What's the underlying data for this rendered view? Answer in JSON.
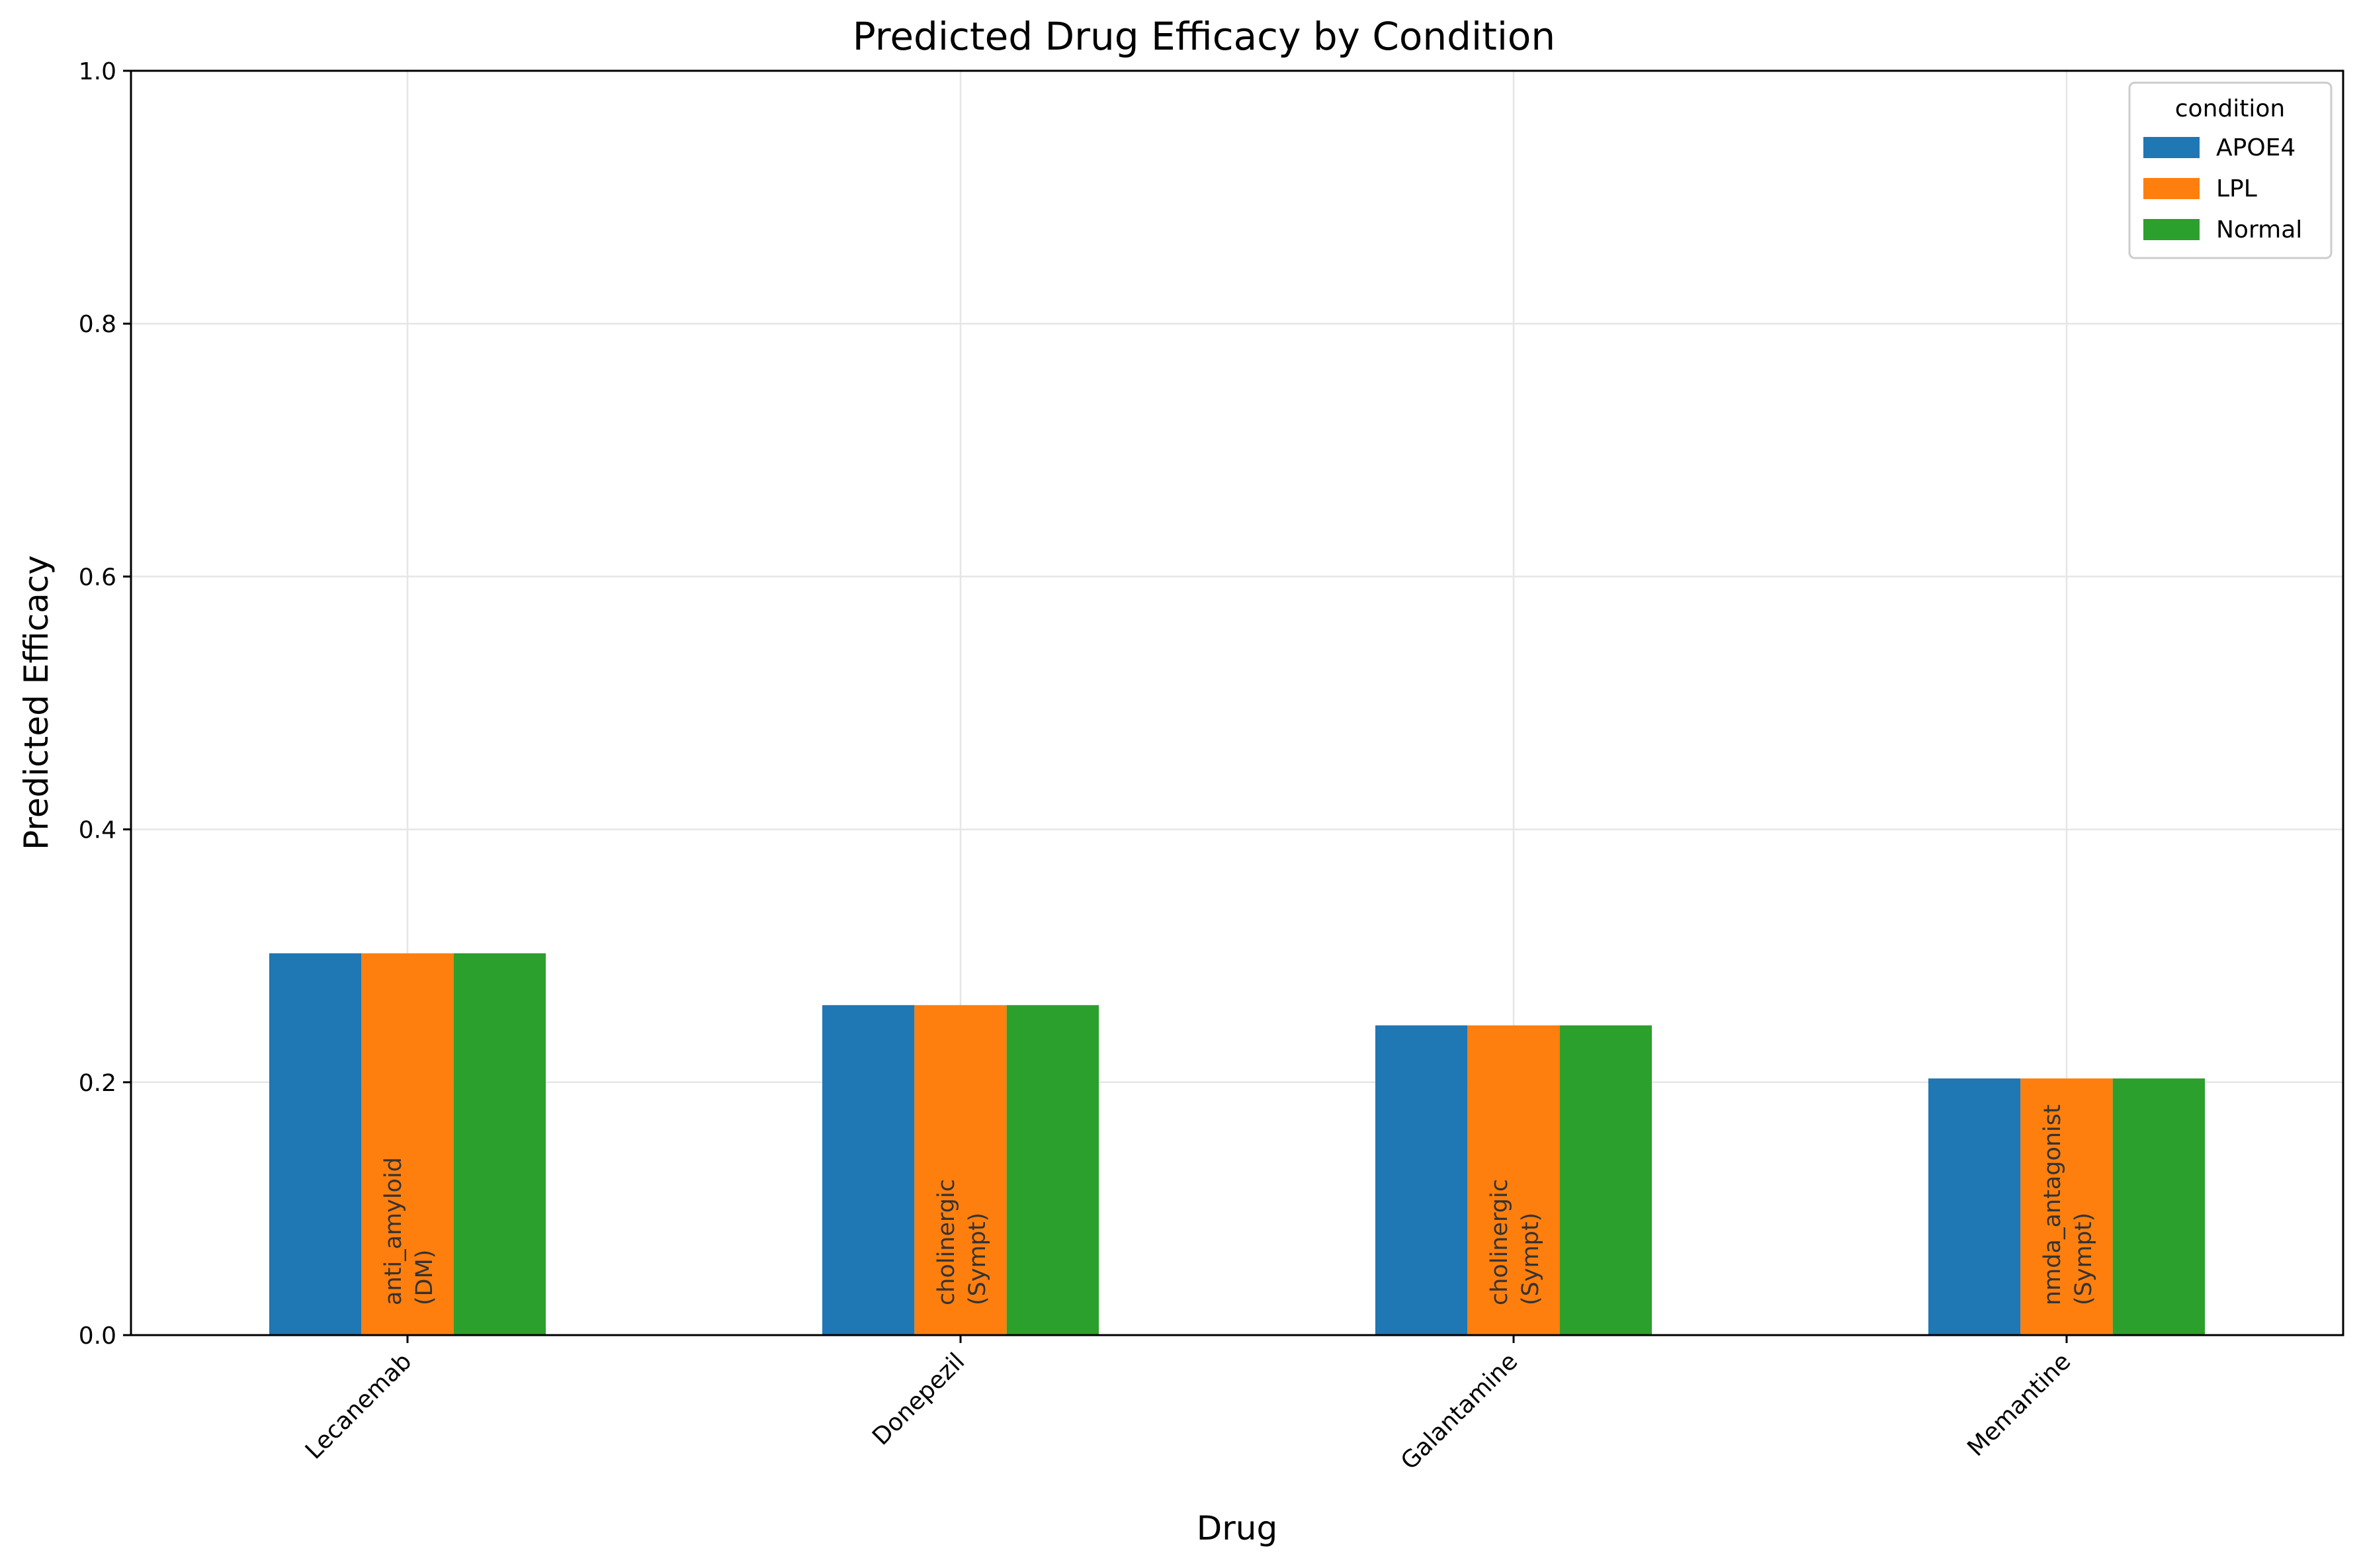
{
  "chart_data": {
    "type": "bar",
    "title": "Predicted Drug Efficacy by Condition",
    "xlabel": "Drug",
    "ylabel": "Predicted Efficacy",
    "ylim": [
      0,
      1.0
    ],
    "yticks": [
      "0.0",
      "0.2",
      "0.4",
      "0.6",
      "0.8",
      "1.0"
    ],
    "ytick_values": [
      0.0,
      0.2,
      0.4,
      0.6,
      0.8,
      1.0
    ],
    "grid": true,
    "legend": {
      "title": "condition",
      "position": "top-right"
    },
    "categories": [
      "Lecanemab",
      "Donepezil",
      "Galantamine",
      "Memantine"
    ],
    "annotations": [
      [
        "anti_amyloid",
        "(DM)"
      ],
      [
        "cholinergic",
        "(Sympt)"
      ],
      [
        "cholinergic",
        "(Sympt)"
      ],
      [
        "nmda_antagonist",
        "(Sympt)"
      ]
    ],
    "series": [
      {
        "name": "APOE4",
        "color": "#1f77b4",
        "values": [
          0.302,
          0.261,
          0.245,
          0.203
        ]
      },
      {
        "name": "LPL",
        "color": "#ff7f0e",
        "values": [
          0.302,
          0.261,
          0.245,
          0.203
        ]
      },
      {
        "name": "Normal",
        "color": "#2ca02c",
        "values": [
          0.302,
          0.261,
          0.245,
          0.203
        ]
      }
    ]
  }
}
